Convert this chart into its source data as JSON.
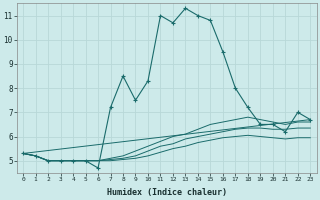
{
  "xlabel": "Humidex (Indice chaleur)",
  "background_color": "#cdeaea",
  "grid_color": "#b8d8d8",
  "line_color": "#1a6b6b",
  "xlim": [
    -0.5,
    23.5
  ],
  "ylim": [
    4.5,
    11.5
  ],
  "xticks": [
    0,
    1,
    2,
    3,
    4,
    5,
    6,
    7,
    8,
    9,
    10,
    11,
    12,
    13,
    14,
    15,
    16,
    17,
    18,
    19,
    20,
    21,
    22,
    23
  ],
  "yticks": [
    5,
    6,
    7,
    8,
    9,
    10,
    11
  ],
  "main_line_x": [
    0,
    1,
    2,
    3,
    4,
    5,
    6,
    7,
    8,
    9,
    10,
    11,
    12,
    13,
    14,
    15,
    16,
    17,
    18,
    19,
    20,
    21,
    22,
    23
  ],
  "main_line_y": [
    5.3,
    5.2,
    5.0,
    5.0,
    5.0,
    5.0,
    4.7,
    7.2,
    8.5,
    7.5,
    8.3,
    11.0,
    10.7,
    11.3,
    11.0,
    10.8,
    9.5,
    8.0,
    7.2,
    6.5,
    6.5,
    6.2,
    7.0,
    6.7
  ],
  "line2_x": [
    0,
    1,
    2,
    3,
    4,
    5,
    6,
    7,
    8,
    9,
    10,
    11,
    12,
    13,
    14,
    15,
    16,
    17,
    18,
    19,
    20,
    21,
    22,
    23
  ],
  "line2_y": [
    5.3,
    5.2,
    5.0,
    5.0,
    5.0,
    5.0,
    5.0,
    5.1,
    5.2,
    5.4,
    5.6,
    5.8,
    6.0,
    6.1,
    6.3,
    6.5,
    6.6,
    6.7,
    6.8,
    6.7,
    6.6,
    6.5,
    6.6,
    6.6
  ],
  "line3_x": [
    0,
    1,
    2,
    3,
    4,
    5,
    6,
    7,
    8,
    9,
    10,
    11,
    12,
    13,
    14,
    15,
    16,
    17,
    18,
    19,
    20,
    21,
    22,
    23
  ],
  "line3_y": [
    5.3,
    5.2,
    5.0,
    5.0,
    5.0,
    5.0,
    5.0,
    5.05,
    5.1,
    5.2,
    5.4,
    5.6,
    5.7,
    5.9,
    6.0,
    6.1,
    6.2,
    6.3,
    6.35,
    6.35,
    6.3,
    6.3,
    6.35,
    6.35
  ],
  "line4_x": [
    0,
    1,
    2,
    3,
    4,
    5,
    6,
    7,
    8,
    9,
    10,
    11,
    12,
    13,
    14,
    15,
    16,
    17,
    18,
    19,
    20,
    21,
    22,
    23
  ],
  "line4_y": [
    5.3,
    5.2,
    5.0,
    5.0,
    5.0,
    5.0,
    5.0,
    5.0,
    5.05,
    5.1,
    5.2,
    5.35,
    5.5,
    5.6,
    5.75,
    5.85,
    5.95,
    6.0,
    6.05,
    6.0,
    5.95,
    5.9,
    5.95,
    5.95
  ],
  "line5_x": [
    0,
    23
  ],
  "line5_y": [
    5.3,
    6.7
  ]
}
